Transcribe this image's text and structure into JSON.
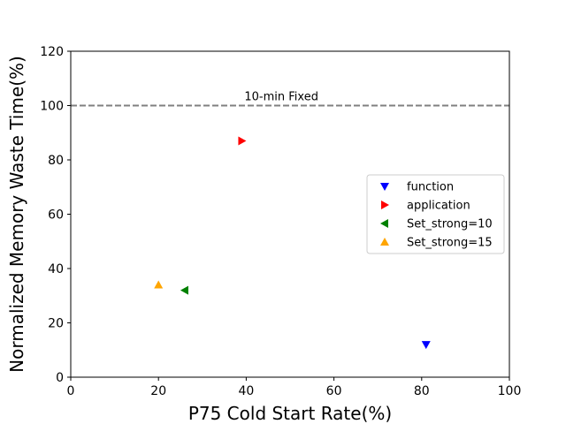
{
  "chart_data": {
    "type": "scatter",
    "xlabel": "P75 Cold Start Rate(%)",
    "ylabel": "Normalized Memory Waste Time(%)",
    "xlim": [
      0,
      100
    ],
    "ylim": [
      0,
      120
    ],
    "xticks": [
      0,
      20,
      40,
      60,
      80,
      100
    ],
    "yticks": [
      0,
      20,
      40,
      60,
      80,
      100,
      120
    ],
    "grid": false,
    "legend_position": "center-right",
    "reference_line": {
      "y": 100,
      "label": "10-min Fixed",
      "label_x": 40,
      "color": "#808080",
      "style": "dashed"
    },
    "series": [
      {
        "name": "function",
        "marker": "triangle-down",
        "color": "#0000ff",
        "x": [
          81
        ],
        "y": [
          12
        ]
      },
      {
        "name": "application",
        "marker": "triangle-right",
        "color": "#ff0000",
        "x": [
          39
        ],
        "y": [
          87
        ]
      },
      {
        "name": "Set_strong=10",
        "marker": "triangle-left",
        "color": "#008000",
        "x": [
          26
        ],
        "y": [
          32
        ]
      },
      {
        "name": "Set_strong=15",
        "marker": "triangle-up",
        "color": "#ffa500",
        "x": [
          20
        ],
        "y": [
          34
        ]
      }
    ]
  }
}
